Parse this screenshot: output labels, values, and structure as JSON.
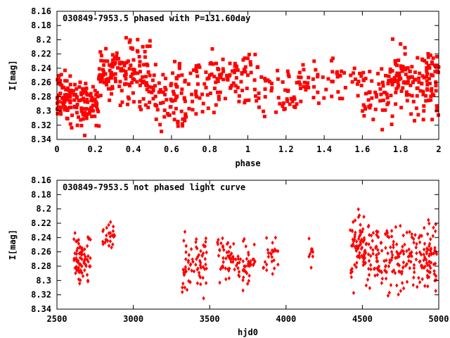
{
  "chart_data": [
    {
      "type": "scatter",
      "title": "030849-7953.5 phased with P=131.60day",
      "xlabel": "phase",
      "ylabel": "I[mag]",
      "xlim": [
        0,
        2
      ],
      "ylim": [
        8.34,
        8.16
      ],
      "y_inverted": true,
      "x_ticks": [
        "0",
        "0.2",
        "0.4",
        "0.6",
        "0.8",
        "1",
        "1.2",
        "1.4",
        "1.6",
        "1.8",
        "2"
      ],
      "y_ticks": [
        "8.16",
        "8.18",
        "8.2",
        "8.22",
        "8.24",
        "8.26",
        "8.28",
        "8.3",
        "8.32",
        "8.34"
      ],
      "grid": false,
      "color": "#ff0000",
      "marker": "filled-square",
      "clusters": [
        {
          "x": [
            0.0,
            0.07
          ],
          "y": [
            8.22,
            8.33
          ],
          "n": 60
        },
        {
          "x": [
            0.07,
            0.22
          ],
          "y": [
            8.24,
            8.34
          ],
          "n": 90
        },
        {
          "x": [
            0.22,
            0.35
          ],
          "y": [
            8.2,
            8.3
          ],
          "n": 70
        },
        {
          "x": [
            0.35,
            0.5
          ],
          "y": [
            8.18,
            8.32
          ],
          "n": 80
        },
        {
          "x": [
            0.5,
            0.68
          ],
          "y": [
            8.22,
            8.34
          ],
          "n": 80
        },
        {
          "x": [
            0.68,
            0.85
          ],
          "y": [
            8.19,
            8.33
          ],
          "n": 50
        },
        {
          "x": [
            0.85,
            1.1
          ],
          "y": [
            8.2,
            8.32
          ],
          "n": 70
        },
        {
          "x": [
            1.1,
            1.25
          ],
          "y": [
            8.22,
            8.33
          ],
          "n": 30
        },
        {
          "x": [
            1.25,
            1.4
          ],
          "y": [
            8.2,
            8.32
          ],
          "n": 30
        },
        {
          "x": [
            1.4,
            1.6
          ],
          "y": [
            8.21,
            8.3
          ],
          "n": 30
        },
        {
          "x": [
            1.6,
            1.75
          ],
          "y": [
            8.22,
            8.33
          ],
          "n": 50
        },
        {
          "x": [
            1.75,
            2.0
          ],
          "y": [
            8.19,
            8.33
          ],
          "n": 140
        }
      ]
    },
    {
      "type": "scatter",
      "title": "030849-7953.5 not phased light curve",
      "xlabel": "hjd0",
      "ylabel": "I[mag]",
      "xlim": [
        2500,
        5000
      ],
      "ylim": [
        8.34,
        8.16
      ],
      "y_inverted": true,
      "x_ticks": [
        "2500",
        "3000",
        "3500",
        "4000",
        "4500",
        "5000"
      ],
      "y_ticks": [
        "8.16",
        "8.18",
        "8.2",
        "8.22",
        "8.24",
        "8.26",
        "8.28",
        "8.3",
        "8.32",
        "8.34"
      ],
      "grid": false,
      "color": "#ff0000",
      "marker": "filled-diamond",
      "clusters": [
        {
          "x": [
            2610,
            2720
          ],
          "y": [
            8.225,
            8.315
          ],
          "n": 75
        },
        {
          "x": [
            2790,
            2880
          ],
          "y": [
            8.21,
            8.27
          ],
          "n": 25
        },
        {
          "x": [
            3320,
            3480
          ],
          "y": [
            8.22,
            8.34
          ],
          "n": 70
        },
        {
          "x": [
            3550,
            3800
          ],
          "y": [
            8.22,
            8.325
          ],
          "n": 90
        },
        {
          "x": [
            3850,
            3950
          ],
          "y": [
            8.23,
            8.3
          ],
          "n": 25
        },
        {
          "x": [
            4150,
            4180
          ],
          "y": [
            8.2,
            8.3
          ],
          "n": 10
        },
        {
          "x": [
            4420,
            4560
          ],
          "y": [
            8.18,
            8.33
          ],
          "n": 90
        },
        {
          "x": [
            4560,
            4990
          ],
          "y": [
            8.2,
            8.335
          ],
          "n": 210
        }
      ]
    }
  ]
}
